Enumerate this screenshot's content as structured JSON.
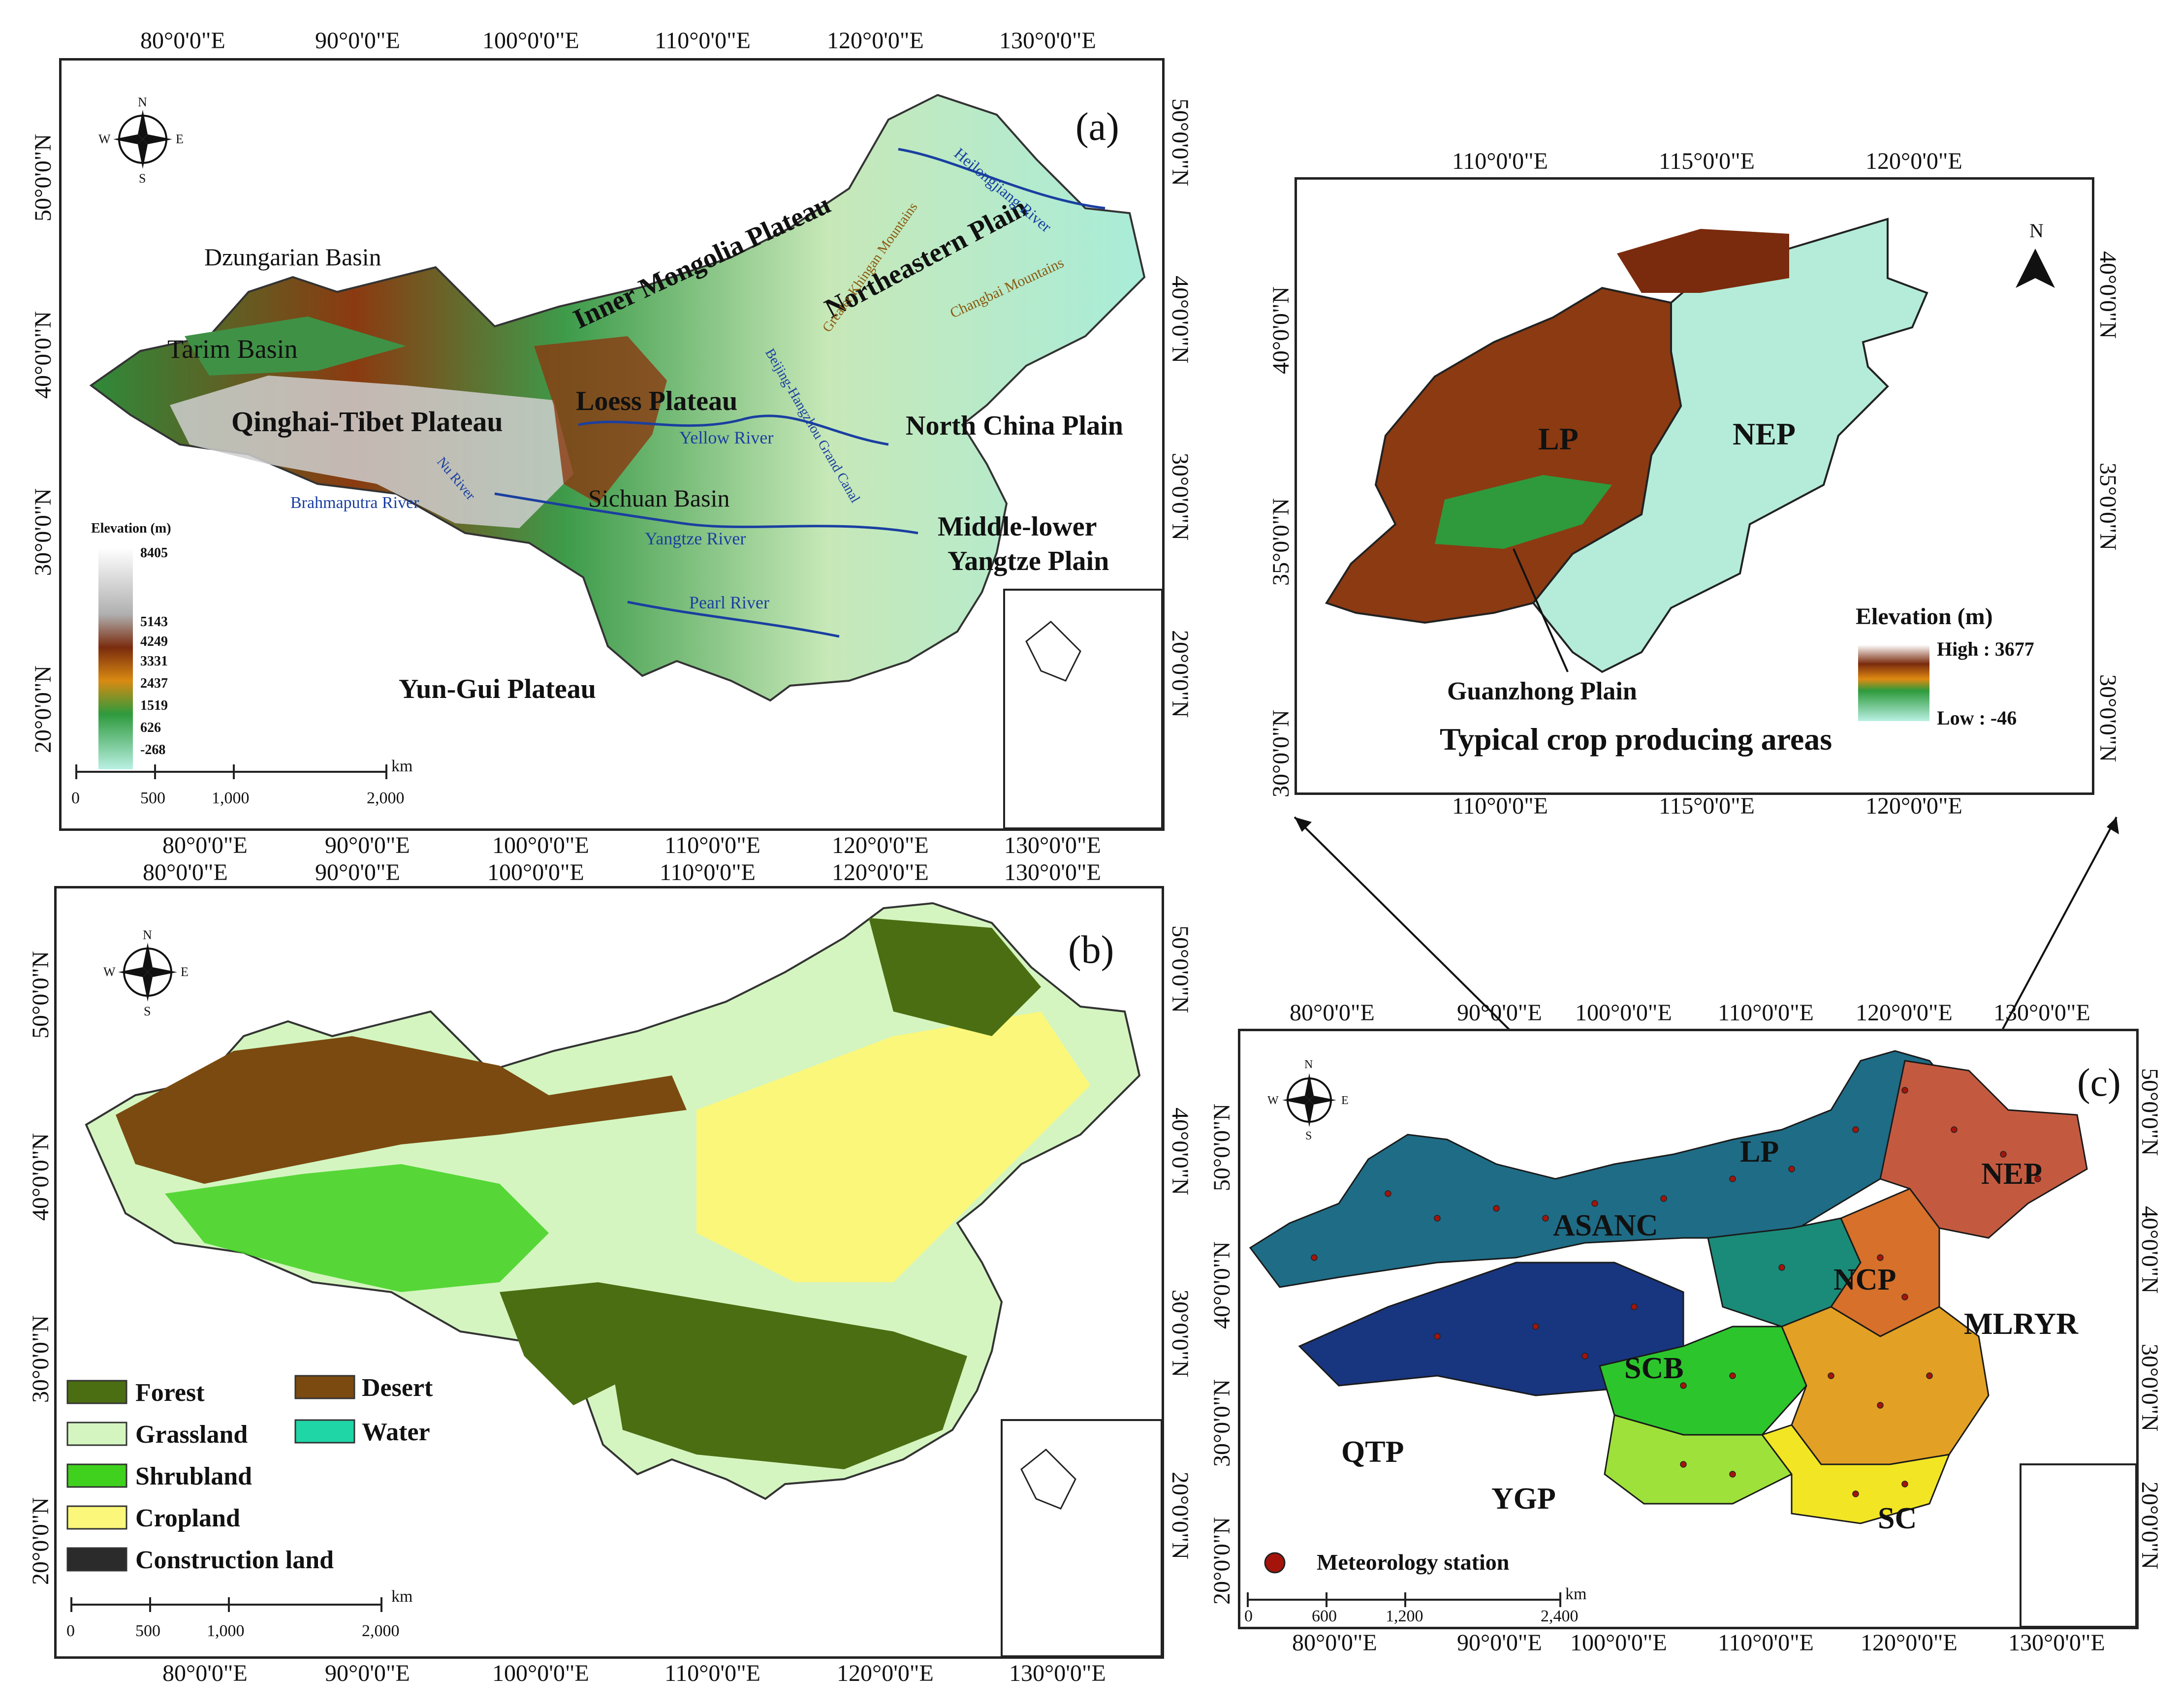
{
  "panel_a": {
    "label": "(a)",
    "top_ticks": [
      "80°0'0\"E",
      "90°0'0\"E",
      "100°0'0\"E",
      "110°0'0\"E",
      "120°0'0\"E",
      "130°0'0\"E"
    ],
    "bottom_ticks": [
      "80°0'0\"E",
      "90°0'0\"E",
      "100°0'0\"E",
      "110°0'0\"E",
      "120°0'0\"E",
      "130°0'0\"E"
    ],
    "left_ticks": [
      "50°0'0\"N",
      "40°0'0\"N",
      "30°0'0\"N",
      "20°0'0\"N"
    ],
    "right_ticks": [
      "50°0'0\"N",
      "40°0'0\"N",
      "30°0'0\"N",
      "20°0'0\"N"
    ],
    "places": {
      "dzungarian": "Dzungarian Basin",
      "tarim": "Tarim Basin",
      "qinghai": "Qinghai-Tibet Plateau",
      "inner_mongolia": "Inner Mongolia Plateau",
      "loess": "Loess Plateau",
      "northeastern": "Northeastern Plain",
      "north_china": "North China Plain",
      "sichuan": "Sichuan Basin",
      "mly1": "Middle-lower",
      "mly2": "Yangtze Plain",
      "yungui": "Yun-Gui Plateau",
      "yellow_river": "Yellow River",
      "yangtze_river": "Yangtze River",
      "pearl_river": "Pearl River",
      "brahmaputra": "Brahmaputra River",
      "heilongjiang": "Heilongjiang River",
      "changbai": "Changbai Mountains",
      "beijing_canal": "Beijing-Hangzhou Grand Canal",
      "greater_khingan": "Greater Khingan Mountains",
      "nu_river": "Nu River"
    },
    "elev_title": "Elevation (m)",
    "elev_ticks": [
      "8405",
      "5143",
      "4249",
      "3331",
      "2437",
      "1519",
      "626",
      "-268"
    ],
    "scale_unit": "km",
    "scale_ticks": [
      "0",
      "500",
      "1,000",
      "2,000"
    ],
    "compass": {
      "n": "N",
      "s": "S",
      "e": "E",
      "w": "W"
    }
  },
  "panel_b": {
    "label": "(b)",
    "top_ticks": [
      "80°0'0\"E",
      "90°0'0\"E",
      "100°0'0\"E",
      "110°0'0\"E",
      "120°0'0\"E",
      "130°0'0\"E"
    ],
    "bottom_ticks": [
      "80°0'0\"E",
      "90°0'0\"E",
      "100°0'0\"E",
      "110°0'0\"E",
      "120°0'0\"E",
      "130°0'0\"E"
    ],
    "left_ticks": [
      "50°0'0\"N",
      "40°0'0\"N",
      "30°0'0\"N",
      "20°0'0\"N"
    ],
    "right_ticks": [
      "50°0'0\"N",
      "40°0'0\"N",
      "30°0'0\"N",
      "20°0'0\"N"
    ],
    "legend": [
      {
        "label": "Forest",
        "color": "#4b6e12"
      },
      {
        "label": "Desert",
        "color": "#7b4a10"
      },
      {
        "label": "Grassland",
        "color": "#d4f5c0"
      },
      {
        "label": "Water",
        "color": "#1fd6a6"
      },
      {
        "label": "Shrubland",
        "color": "#3fd11e"
      },
      {
        "label": "Cropland",
        "color": "#fbf77a"
      },
      {
        "label": "Construction land",
        "color": "#2b2b2b"
      }
    ],
    "scale_unit": "km",
    "scale_ticks": [
      "0",
      "500",
      "1,000",
      "2,000"
    ],
    "compass": {
      "n": "N",
      "s": "S",
      "e": "E",
      "w": "W"
    }
  },
  "panel_inset": {
    "top_ticks": [
      "110°0'0\"E",
      "115°0'0\"E",
      "120°0'0\"E"
    ],
    "bottom_ticks": [
      "110°0'0\"E",
      "115°0'0\"E",
      "120°0'0\"E"
    ],
    "left_ticks": [
      "40°0'0\"N",
      "35°0'0\"N",
      "30°0'0\"N"
    ],
    "right_ticks": [
      "40°0'0\"N",
      "35°0'0\"N",
      "30°0'0\"N"
    ],
    "lp": "LP",
    "nep": "NEP",
    "guanzhong": "Guanzhong Plain",
    "caption": "Typical crop producing areas",
    "north": "N",
    "elev_title": "Elevation (m)",
    "elev_high": "High : 3677",
    "elev_low": "Low : -46"
  },
  "panel_c": {
    "label": "(c)",
    "top_ticks": [
      "80°0'0\"E",
      "90°0'0\"E",
      "100°0'0\"E",
      "110°0'0\"E",
      "120°0'0\"E",
      "130°0'0\"E"
    ],
    "bottom_ticks": [
      "80°0'0\"E",
      "90°0'0\"E",
      "100°0'0\"E",
      "110°0'0\"E",
      "120°0'0\"E",
      "130°0'0\"E"
    ],
    "left_ticks": [
      "50°0'0\"N",
      "40°0'0\"N",
      "30°0'0\"N",
      "20°0'0\"N"
    ],
    "right_ticks": [
      "50°0'0\"N",
      "40°0'0\"N",
      "30°0'0\"N",
      "20°0'0\"N"
    ],
    "regions": {
      "lp": "LP",
      "nep": "NEP",
      "asanc": "ASANC",
      "ncp": "NCP",
      "mlryr": "MLRYR",
      "scb": "SCB",
      "qtp": "QTP",
      "ygp": "YGP",
      "sc": "SC"
    },
    "station_legend": "Meteorology station",
    "scale_unit": "km",
    "scale_ticks": [
      "0",
      "600",
      "1,200",
      "2,400"
    ],
    "compass": {
      "n": "N",
      "s": "S",
      "e": "E",
      "w": "W"
    }
  },
  "colors": {
    "elev_low": "#8fe0c8",
    "elev_mid": "#2e9a3c",
    "elev_high": "#7a2b0d",
    "elev_top": "#ffffff",
    "asanc": "#1f6c86",
    "nep": "#c35a40",
    "ncp": "#d6702a",
    "mlryr": "#e2a124",
    "scb": "#2cc62c",
    "qtp": "#18357f",
    "ygp": "#9ee13a",
    "sc": "#f2e524",
    "lp": "#1a8b78",
    "station": "#a4140b"
  }
}
